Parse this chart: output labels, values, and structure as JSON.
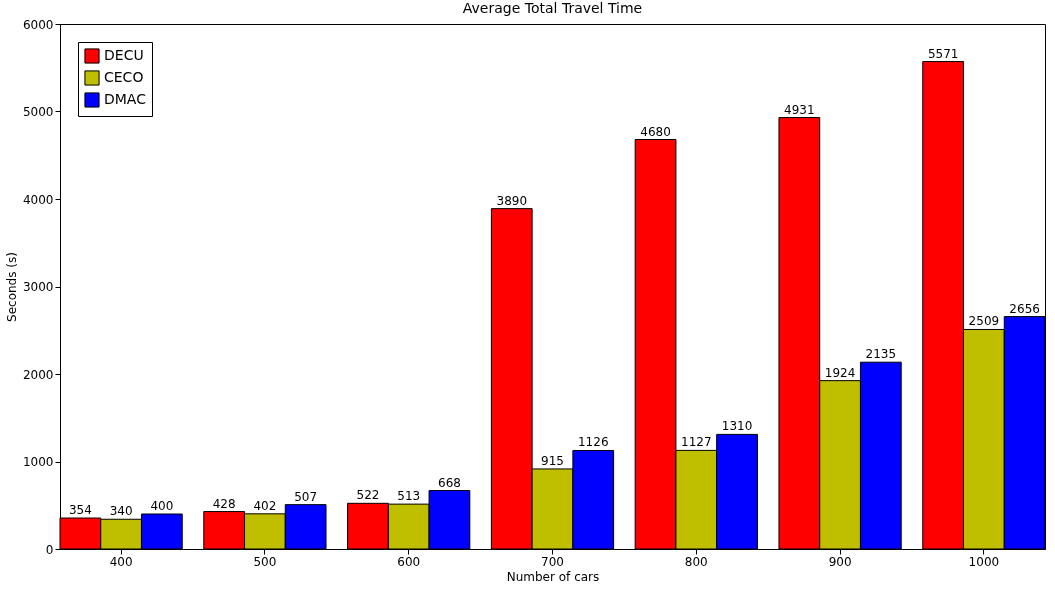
{
  "chart_data": {
    "type": "bar",
    "title": "Average Total Travel Time",
    "xlabel": "Number of cars",
    "ylabel": "Seconds (s)",
    "categories": [
      "400",
      "500",
      "600",
      "700",
      "800",
      "900",
      "1000"
    ],
    "series": [
      {
        "name": "DECU",
        "color": "#ff0000",
        "values": [
          354,
          428,
          522,
          3890,
          4680,
          4931,
          5571
        ]
      },
      {
        "name": "CECO",
        "color": "#bfbf00",
        "values": [
          340,
          402,
          513,
          915,
          1127,
          1924,
          2509
        ]
      },
      {
        "name": "DMAC",
        "color": "#0000ff",
        "values": [
          400,
          507,
          668,
          1126,
          1310,
          2135,
          2656
        ]
      }
    ],
    "ylim": [
      0,
      6000
    ],
    "yticks": [
      0,
      1000,
      2000,
      3000,
      4000,
      5000,
      6000
    ],
    "grid": false,
    "legend": "top left",
    "data_labels": true
  }
}
